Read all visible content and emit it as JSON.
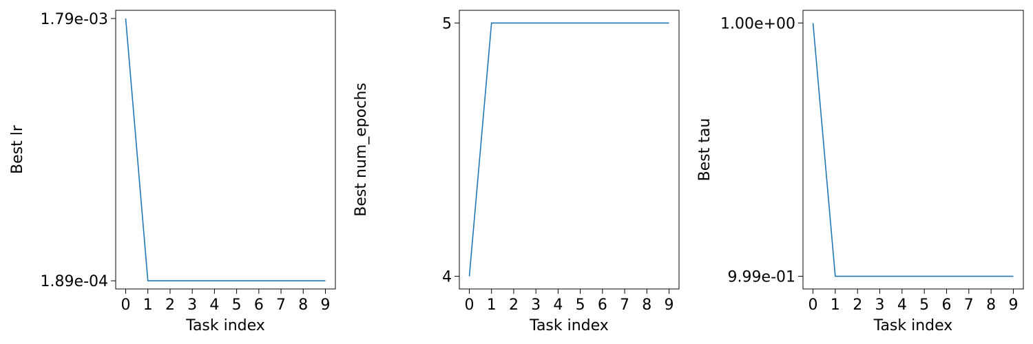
{
  "chart_data": [
    {
      "type": "line",
      "xlabel": "Task index",
      "ylabel": "Best lr",
      "x": [
        0,
        1,
        2,
        3,
        4,
        5,
        6,
        7,
        8,
        9
      ],
      "series": [
        {
          "values": [
            0.00179,
            0.000189,
            0.000189,
            0.000189,
            0.000189,
            0.000189,
            0.000189,
            0.000189,
            0.000189,
            0.000189
          ]
        }
      ],
      "yticks": [
        0.000189,
        0.00179
      ],
      "ytick_labels": [
        "1.89e-04",
        "1.79e-03"
      ],
      "xticks": [
        0,
        1,
        2,
        3,
        4,
        5,
        6,
        7,
        8,
        9
      ],
      "xtick_labels": [
        "0",
        "1",
        "2",
        "3",
        "4",
        "5",
        "6",
        "7",
        "8",
        "9"
      ],
      "xlim": [
        -0.45,
        9.45
      ],
      "ylim": [
        0.000139,
        0.00184
      ],
      "grid": false,
      "line_color": "#1f77b4"
    },
    {
      "type": "line",
      "xlabel": "Task index",
      "ylabel": "Best num_epochs",
      "x": [
        0,
        1,
        2,
        3,
        4,
        5,
        6,
        7,
        8,
        9
      ],
      "series": [
        {
          "values": [
            4,
            5,
            5,
            5,
            5,
            5,
            5,
            5,
            5,
            5
          ]
        }
      ],
      "yticks": [
        4,
        5
      ],
      "ytick_labels": [
        "4",
        "5"
      ],
      "xticks": [
        0,
        1,
        2,
        3,
        4,
        5,
        6,
        7,
        8,
        9
      ],
      "xtick_labels": [
        "0",
        "1",
        "2",
        "3",
        "4",
        "5",
        "6",
        "7",
        "8",
        "9"
      ],
      "xlim": [
        -0.45,
        9.45
      ],
      "ylim": [
        3.95,
        5.05
      ],
      "grid": false,
      "line_color": "#1f77b4"
    },
    {
      "type": "line",
      "xlabel": "Task index",
      "ylabel": "Best tau",
      "x": [
        0,
        1,
        2,
        3,
        4,
        5,
        6,
        7,
        8,
        9
      ],
      "series": [
        {
          "values": [
            1.0,
            0.999,
            0.999,
            0.999,
            0.999,
            0.999,
            0.999,
            0.999,
            0.999,
            0.999
          ]
        }
      ],
      "yticks": [
        0.999,
        1.0
      ],
      "ytick_labels": [
        "9.99e-01",
        "1.00e+00"
      ],
      "xticks": [
        0,
        1,
        2,
        3,
        4,
        5,
        6,
        7,
        8,
        9
      ],
      "xtick_labels": [
        "0",
        "1",
        "2",
        "3",
        "4",
        "5",
        "6",
        "7",
        "8",
        "9"
      ],
      "xlim": [
        -0.45,
        9.45
      ],
      "ylim": [
        0.99895,
        1.00005
      ],
      "grid": false,
      "line_color": "#1f77b4"
    }
  ]
}
